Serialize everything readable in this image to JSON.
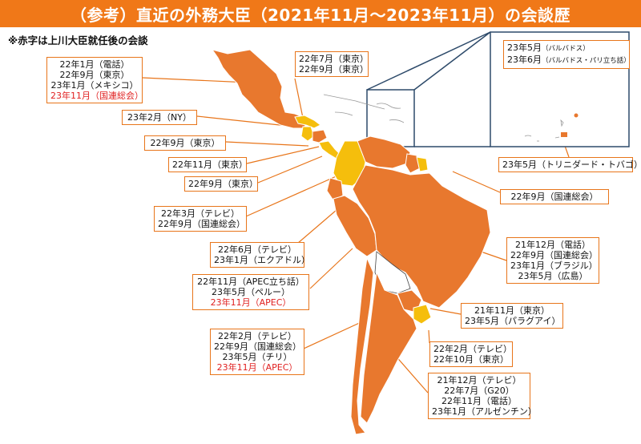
{
  "title": "（参考）直近の外務大臣（2021年11月～2023年11月）の会談歴",
  "note": "※赤字は上川大臣就任後の会談",
  "colors": {
    "header": "#f07818",
    "country_orange": "#e8782e",
    "country_yellow": "#f5be0c",
    "border": "#e8751a",
    "red_text": "#e02020"
  },
  "labels": [
    {
      "id": "mexico",
      "lines": [
        {
          "t": "22年1月（電話）"
        },
        {
          "t": "22年9月（東京）"
        },
        {
          "t": "23年1月（メキシコ）"
        },
        {
          "t": "23年11月（国連総会）",
          "red": true
        }
      ]
    },
    {
      "id": "cuba",
      "lines": [
        {
          "t": "22年7月（東京）"
        },
        {
          "t": "22年9月（東京）"
        }
      ]
    },
    {
      "id": "barbados",
      "lines": [
        {
          "t": "23年5月",
          "s": "（バルバドス）"
        },
        {
          "t": "23年6月",
          "s": "（バルバドス・パリ立ち話）"
        }
      ]
    },
    {
      "id": "ny",
      "lines": [
        {
          "t": "23年2月（NY）"
        }
      ]
    },
    {
      "id": "guatemala",
      "lines": [
        {
          "t": "22年9月（東京）"
        }
      ]
    },
    {
      "id": "honduras",
      "lines": [
        {
          "t": "22年11月（東京）"
        }
      ]
    },
    {
      "id": "costarica",
      "lines": [
        {
          "t": "22年9月（東京）"
        }
      ]
    },
    {
      "id": "trinidad",
      "lines": [
        {
          "t": "23年5月（トリニダード・トバゴ）"
        }
      ]
    },
    {
      "id": "suriname",
      "lines": [
        {
          "t": "22年9月（国連総会）"
        }
      ]
    },
    {
      "id": "colombia",
      "lines": [
        {
          "t": "22年3月（テレビ）"
        },
        {
          "t": "22年9月（国連総会）"
        }
      ]
    },
    {
      "id": "ecuador",
      "lines": [
        {
          "t": "22年6月（テレビ）"
        },
        {
          "t": "23年1月（エクアドル）"
        }
      ]
    },
    {
      "id": "brazil",
      "lines": [
        {
          "t": "21年12月（電話）"
        },
        {
          "t": "22年9月（国連総会）"
        },
        {
          "t": "23年1月（ブラジル）"
        },
        {
          "t": "23年5月（広島）"
        }
      ]
    },
    {
      "id": "peru",
      "lines": [
        {
          "t": "22年11月（APEC立ち話）"
        },
        {
          "t": "23年5月（ペルー）"
        },
        {
          "t": "23年11月（APEC）",
          "red": true
        }
      ]
    },
    {
      "id": "paraguay",
      "lines": [
        {
          "t": "21年11月（東京）"
        },
        {
          "t": "23年5月（パラグアイ）"
        }
      ]
    },
    {
      "id": "chile",
      "lines": [
        {
          "t": "22年2月（テレビ）"
        },
        {
          "t": "22年9月（国連総会）"
        },
        {
          "t": "23年5月（チリ）"
        },
        {
          "t": "23年11月（APEC）",
          "red": true
        }
      ]
    },
    {
      "id": "uruguay",
      "lines": [
        {
          "t": "22年2月（テレビ）"
        },
        {
          "t": "22年10月（東京）"
        }
      ]
    },
    {
      "id": "argentina",
      "lines": [
        {
          "t": "21年12月（テレビ）"
        },
        {
          "t": "22年7月（G20）"
        },
        {
          "t": "22年11月（電話）"
        },
        {
          "t": "23年1月（アルゼンチン）"
        }
      ]
    }
  ]
}
